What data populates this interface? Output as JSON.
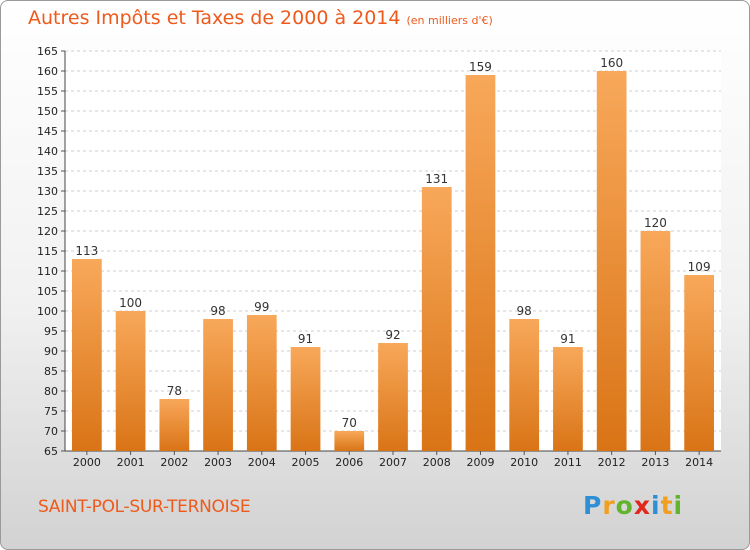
{
  "chart_data": {
    "type": "bar",
    "title": "Autres Impôts et Taxes de 2000 à 2014",
    "subtitle": "(en milliers d'€)",
    "categories": [
      "2000",
      "2001",
      "2002",
      "2003",
      "2004",
      "2005",
      "2006",
      "2007",
      "2008",
      "2009",
      "2010",
      "2011",
      "2012",
      "2013",
      "2014"
    ],
    "values": [
      113,
      100,
      78,
      98,
      99,
      91,
      70,
      92,
      131,
      159,
      98,
      91,
      160,
      120,
      109
    ],
    "ylim": [
      65,
      165
    ],
    "ytick_step": 5,
    "grid": true,
    "xlabel": "",
    "ylabel": "",
    "colors": {
      "bar_light": "#f8a85a",
      "bar_dark": "#d97416",
      "title": "#ee5a1c"
    }
  },
  "footer": {
    "town": "SAINT-POL-SUR-TERNOISE",
    "logo": {
      "p": "P",
      "r": "r",
      "o": "o",
      "x": "x",
      "i1": "i",
      "t": "t",
      "i2": "i"
    }
  }
}
